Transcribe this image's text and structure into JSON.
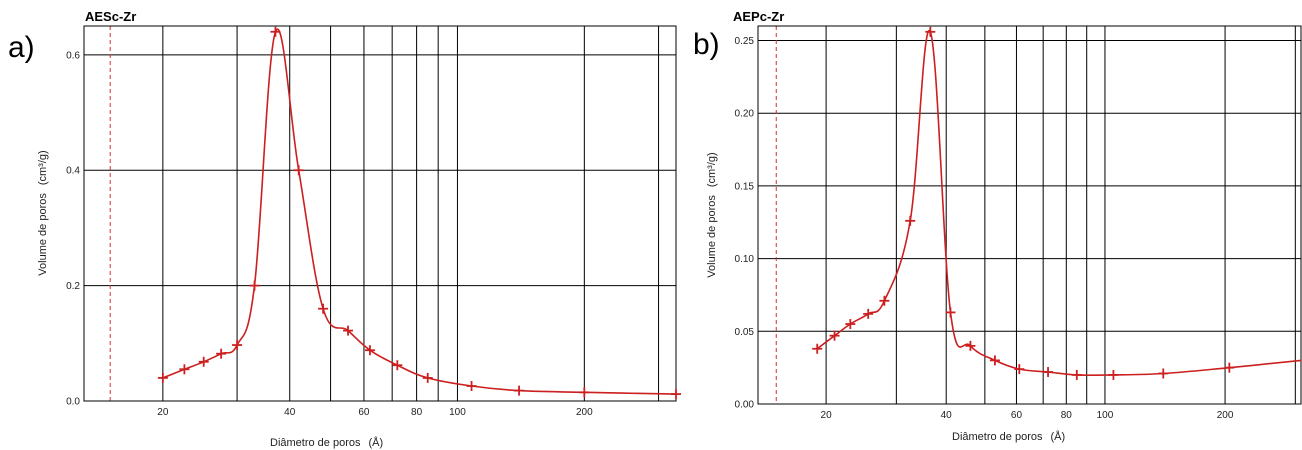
{
  "panels": [
    {
      "letter": "a)",
      "title": "AESc-Zr",
      "xlabel": "Diâmetro de poros",
      "xunit": "(Å)",
      "ylabel": "Volume de poros",
      "yunit": "(cm³/g)"
    },
    {
      "letter": "b)",
      "title": "AEPc-Zr",
      "xlabel": "Diâmetro de poros",
      "xunit": "(Å)",
      "ylabel": "Volume de poros",
      "yunit": "(cm³/g)"
    }
  ],
  "colors": {
    "series": "#cc1f1f",
    "grid": "#000000",
    "reference_line": "#cc3333"
  },
  "chart_data": [
    {
      "type": "line",
      "title": "AESc-Zr",
      "xlabel": "Diâmetro de poros (Å)",
      "ylabel": "Volume de poros (cm³/g)",
      "xscale": "log",
      "xlim": [
        13,
        330
      ],
      "ylim": [
        0,
        0.65
      ],
      "xticks": [
        20,
        40,
        60,
        80,
        100,
        200
      ],
      "xtick_labels": [
        "20",
        "40",
        "60",
        "80",
        "100",
        "200"
      ],
      "xgrid": [
        20,
        30,
        40,
        50,
        60,
        70,
        80,
        90,
        100,
        200,
        300
      ],
      "yticks": [
        0.0,
        0.2,
        0.4,
        0.6
      ],
      "ytick_labels": [
        "0.0",
        "0.2",
        "0.4",
        "0.6"
      ],
      "ygrid": [
        0.0,
        0.2,
        0.4,
        0.6
      ],
      "reference_line_x": 15,
      "grid": true,
      "x": [
        20,
        22.5,
        25,
        27.5,
        30,
        33,
        37,
        42,
        48,
        55,
        62,
        72,
        85,
        108,
        140,
        200,
        330
      ],
      "y": [
        0.04,
        0.055,
        0.068,
        0.082,
        0.097,
        0.2,
        0.64,
        0.4,
        0.16,
        0.122,
        0.088,
        0.062,
        0.04,
        0.026,
        0.018,
        0.015,
        0.012
      ]
    },
    {
      "type": "line",
      "title": "AEPc-Zr",
      "xlabel": "Diâmetro de poros (Å)",
      "ylabel": "Volume de poros (cm³/g)",
      "xscale": "log",
      "xlim": [
        13.5,
        310
      ],
      "ylim": [
        0,
        0.26
      ],
      "xticks": [
        20,
        40,
        60,
        80,
        100,
        200
      ],
      "xtick_labels": [
        "20",
        "40",
        "60",
        "80",
        "100",
        "200"
      ],
      "xgrid": [
        20,
        30,
        40,
        50,
        60,
        70,
        80,
        90,
        100,
        200,
        300
      ],
      "yticks": [
        0.0,
        0.05,
        0.1,
        0.15,
        0.2,
        0.25
      ],
      "ytick_labels": [
        "0.00",
        "0.05",
        "0.10",
        "0.15",
        "0.20",
        "0.25"
      ],
      "ygrid": [
        0.0,
        0.05,
        0.1,
        0.15,
        0.2,
        0.25
      ],
      "reference_line_x": 15,
      "grid": true,
      "x": [
        19,
        21,
        23,
        25.5,
        28,
        32.5,
        36.5,
        41,
        46,
        53,
        61,
        72,
        85,
        105,
        140,
        205,
        310
      ],
      "y": [
        0.038,
        0.047,
        0.055,
        0.062,
        0.071,
        0.126,
        0.256,
        0.063,
        0.04,
        0.03,
        0.024,
        0.022,
        0.02,
        0.02,
        0.021,
        0.025,
        0.03
      ],
      "markers_count": 16
    }
  ]
}
